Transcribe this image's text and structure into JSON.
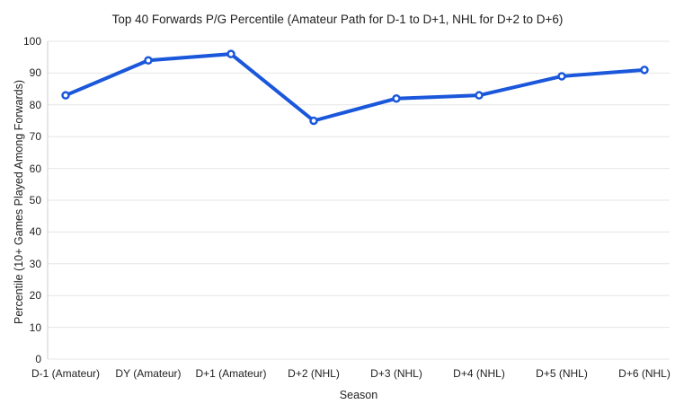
{
  "chart_data": {
    "type": "line",
    "title": "Top 40 Forwards P/G Percentile (Amateur Path for D-1 to D+1, NHL for D+2 to D+6)",
    "xlabel": "Season",
    "ylabel": "Percentile (10+ Games Played Among Forwards)",
    "categories": [
      "D-1 (Amateur)",
      "DY (Amateur)",
      "D+1 (Amateur)",
      "D+2 (NHL)",
      "D+3 (NHL)",
      "D+4 (NHL)",
      "D+5 (NHL)",
      "D+6 (NHL)"
    ],
    "values": [
      83,
      94,
      96,
      75,
      82,
      83,
      89,
      91
    ],
    "ylim": [
      0,
      100
    ],
    "ytick_step": 10,
    "grid": true,
    "legend": "none",
    "colors": {
      "line": "#1a57db",
      "marker_fill": "#ffffff",
      "gridline": "#e6e6e6",
      "axis_line": "#cccccc",
      "text": "#212121",
      "background": "#ffffff"
    }
  }
}
